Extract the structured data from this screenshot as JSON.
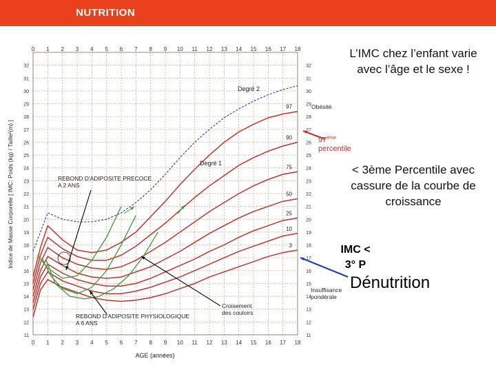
{
  "header": {
    "title": "NUTRITION"
  },
  "notes": {
    "top": "L’IMC chez l’enfant varie avec l’âge et le sexe !",
    "mid": "< 3ème Percentile avec cassure de la courbe de croissance",
    "imc": "IMC < 3° P",
    "denutrition": "Dénutrition",
    "percentile_label_sup": "ème",
    "percentile_label_main": "97",
    "percentile_label_word": "percentile"
  },
  "colors": {
    "header": "#e8411b",
    "curve": "#c5322a",
    "grid": "#c8a58a",
    "green": "#3a9a3a",
    "blue": "#1f3fbf",
    "obese": "#2d3a8c"
  },
  "chart_data": {
    "type": "line",
    "xlabel": "AGE (années)",
    "ylabel": "Indice de Masse Corporelle [ IMC: Poids (kg) / Taille²(m) ]",
    "xlim": [
      0,
      18
    ],
    "ylim": [
      11,
      33
    ],
    "x_ticks": [
      0,
      1,
      2,
      3,
      4,
      5,
      6,
      7,
      8,
      9,
      10,
      11,
      12,
      13,
      14,
      15,
      16,
      17,
      18
    ],
    "y_ticks": [
      11,
      12,
      13,
      14,
      15,
      16,
      17,
      18,
      19,
      20,
      21,
      22,
      23,
      24,
      25,
      26,
      27,
      28,
      29,
      30,
      31,
      32
    ],
    "series": [
      {
        "name": "97",
        "x": [
          0,
          0.5,
          1,
          2,
          3,
          4,
          5,
          6,
          7,
          8,
          9,
          10,
          11,
          12,
          13,
          14,
          15,
          16,
          17,
          18
        ],
        "values": [
          15.5,
          17.8,
          19.5,
          18.4,
          17.6,
          17.4,
          17.6,
          18.2,
          19.0,
          20.2,
          21.4,
          22.7,
          23.9,
          25.0,
          26.0,
          26.8,
          27.4,
          27.9,
          28.2,
          28.4
        ]
      },
      {
        "name": "90",
        "x": [
          0,
          0.5,
          1,
          2,
          3,
          4,
          5,
          6,
          7,
          8,
          9,
          10,
          11,
          12,
          13,
          14,
          15,
          16,
          17,
          18
        ],
        "values": [
          15.0,
          17.2,
          18.6,
          17.7,
          17.1,
          16.8,
          16.8,
          17.2,
          17.9,
          18.8,
          19.7,
          20.7,
          21.7,
          22.6,
          23.4,
          24.2,
          24.8,
          25.3,
          25.7,
          26.0
        ]
      },
      {
        "name": "75",
        "x": [
          0,
          0.5,
          1,
          2,
          3,
          4,
          5,
          6,
          7,
          8,
          9,
          10,
          11,
          12,
          13,
          14,
          15,
          16,
          17,
          18
        ],
        "values": [
          14.5,
          16.6,
          17.8,
          17.0,
          16.5,
          16.2,
          16.1,
          16.3,
          16.8,
          17.5,
          18.2,
          19.0,
          19.8,
          20.6,
          21.3,
          22.0,
          22.6,
          23.1,
          23.5,
          23.7
        ]
      },
      {
        "name": "50",
        "x": [
          0,
          0.5,
          1,
          2,
          3,
          4,
          5,
          6,
          7,
          8,
          9,
          10,
          11,
          12,
          13,
          14,
          15,
          16,
          17,
          18
        ],
        "values": [
          14.0,
          16.0,
          17.1,
          16.4,
          15.8,
          15.5,
          15.4,
          15.5,
          15.9,
          16.3,
          16.9,
          17.5,
          18.2,
          18.9,
          19.5,
          20.1,
          20.6,
          21.0,
          21.4,
          21.6
        ]
      },
      {
        "name": "25",
        "x": [
          0,
          0.5,
          1,
          2,
          3,
          4,
          5,
          6,
          7,
          8,
          9,
          10,
          11,
          12,
          13,
          14,
          15,
          16,
          17,
          18
        ],
        "values": [
          13.5,
          15.5,
          16.5,
          15.8,
          15.3,
          15.0,
          14.8,
          14.8,
          15.0,
          15.4,
          15.9,
          16.4,
          16.9,
          17.5,
          18.0,
          18.6,
          19.1,
          19.5,
          19.9,
          20.1
        ]
      },
      {
        "name": "10",
        "x": [
          0,
          0.5,
          1,
          2,
          3,
          4,
          5,
          6,
          7,
          8,
          9,
          10,
          11,
          12,
          13,
          14,
          15,
          16,
          17,
          18
        ],
        "values": [
          13.0,
          15.0,
          15.9,
          15.2,
          14.8,
          14.4,
          14.2,
          14.2,
          14.4,
          14.7,
          15.1,
          15.5,
          16.0,
          16.5,
          17.0,
          17.5,
          17.9,
          18.3,
          18.7,
          18.9
        ]
      },
      {
        "name": "3",
        "x": [
          0,
          0.5,
          1,
          2,
          3,
          4,
          5,
          6,
          7,
          8,
          9,
          10,
          11,
          12,
          13,
          14,
          15,
          16,
          17,
          18
        ],
        "values": [
          12.4,
          14.5,
          15.3,
          14.7,
          14.3,
          13.9,
          13.7,
          13.6,
          13.7,
          13.9,
          14.2,
          14.6,
          15.0,
          15.5,
          15.9,
          16.3,
          16.7,
          17.1,
          17.4,
          17.6
        ]
      }
    ],
    "obesity_line": {
      "x": [
        0,
        1,
        2,
        3,
        4,
        5,
        6,
        7,
        8,
        9,
        10,
        11,
        12,
        13,
        14,
        15,
        16,
        17,
        18
      ],
      "values": [
        17.5,
        20.5,
        20.0,
        19.8,
        19.8,
        20.0,
        20.5,
        21.3,
        22.3,
        23.5,
        24.8,
        26.0,
        27.0,
        27.9,
        28.6,
        29.2,
        29.7,
        30.1,
        30.4
      ]
    },
    "green_curves": [
      {
        "x": [
          0.3,
          1,
          2,
          3,
          4,
          5,
          6
        ],
        "values": [
          17.2,
          16.2,
          15.4,
          15.6,
          16.8,
          18.6,
          21.0
        ]
      },
      {
        "x": [
          0.6,
          1.2,
          2,
          3,
          4,
          5,
          6,
          7
        ],
        "values": [
          17.0,
          15.6,
          14.6,
          14.2,
          14.7,
          16.0,
          18.0,
          20.3
        ]
      },
      {
        "x": [
          0.9,
          1.5,
          2.5,
          3.5,
          4.5,
          5.5,
          6.5,
          7.5,
          8.5
        ],
        "values": [
          16.8,
          15.0,
          14.0,
          13.8,
          14.0,
          14.6,
          15.6,
          17.1,
          19.0
        ]
      }
    ],
    "annotations": {
      "degre2": "Degré 2",
      "degre1": "Degré 1",
      "obesite": "Obésité",
      "rebond_precoce": "REBOND D'ADIPOSITE PRECOCE A 2 ANS",
      "rebond_physio": "REBOND D'ADIPOSITE PHYSIOLOGIQUE A 6 ANS",
      "croisement": "Croisement des couloirs",
      "insuffisance": "Insuffisance pondérale"
    }
  }
}
